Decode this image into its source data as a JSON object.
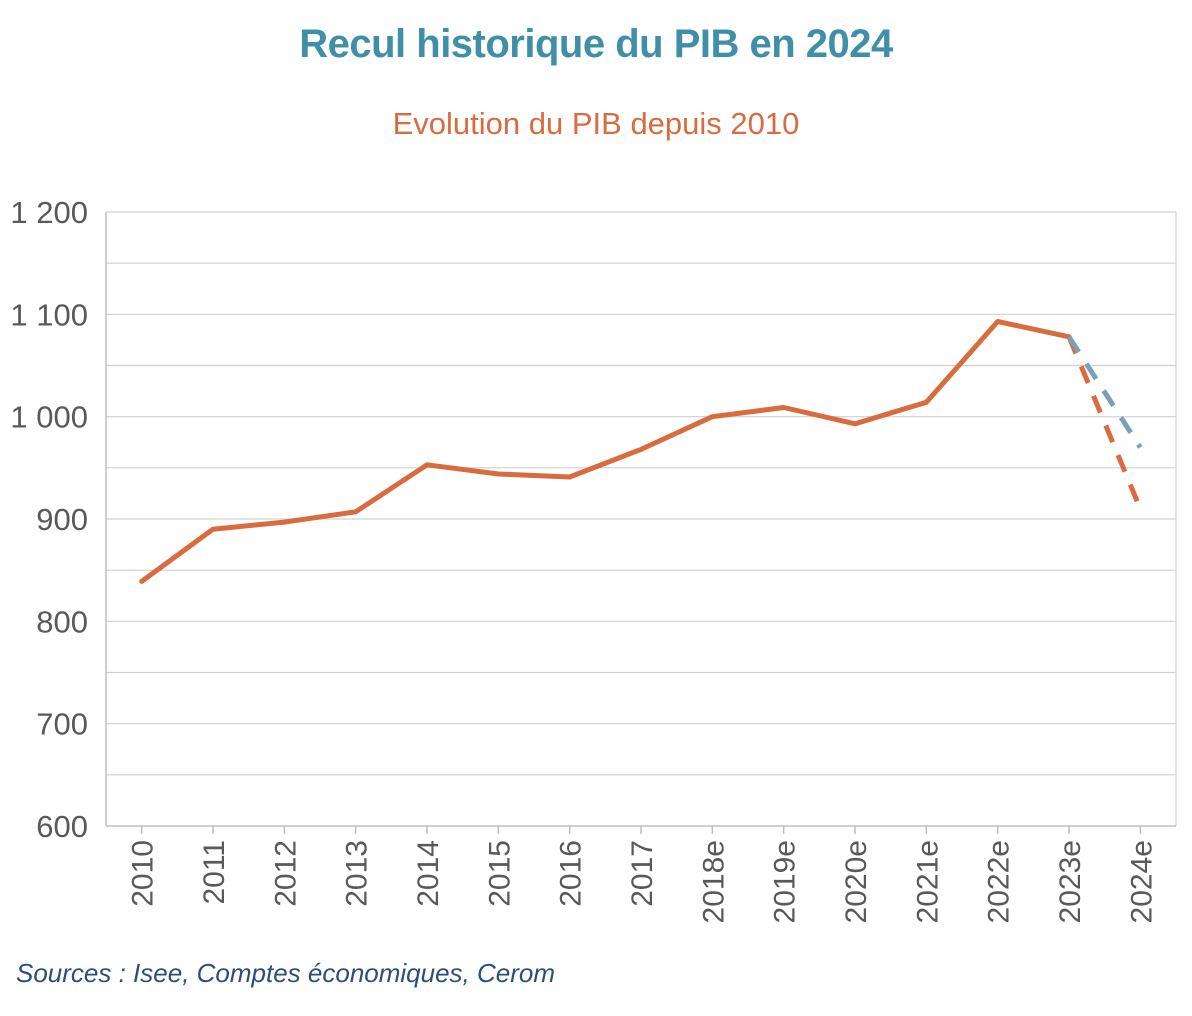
{
  "title": "Recul historique du PIB en 2024",
  "subtitle": "Evolution du PIB depuis 2010",
  "source": "Sources : Isee, Comptes économiques, Cerom",
  "colors": {
    "title": "#3f8fa8",
    "subtitle": "#d96c3f",
    "series_main": "#d96c3f",
    "series_alt": "#7a9fb8",
    "grid": "#d0d0d0",
    "source": "#2b4f7a"
  },
  "chart_data": {
    "type": "line",
    "title": "Recul historique du PIB en 2024",
    "subtitle": "Evolution du PIB depuis 2010",
    "xlabel": "",
    "ylabel": "",
    "ylim": [
      600,
      1200
    ],
    "yticks": [
      600,
      700,
      800,
      900,
      1000,
      1100,
      1200
    ],
    "ytick_labels": [
      "600",
      "700",
      "800",
      "900",
      "1 000",
      "1 100",
      "1 200"
    ],
    "grid": true,
    "legend": "none",
    "categories": [
      "2010",
      "2011",
      "2012",
      "2013",
      "2014",
      "2015",
      "2016",
      "2017",
      "2018e",
      "2019e",
      "2020e",
      "2021e",
      "2022e",
      "2023e",
      "2024e"
    ],
    "series": [
      {
        "style": "solid",
        "color": "#d96c3f",
        "values": [
          839,
          890,
          897,
          907,
          953,
          944,
          941,
          968,
          1000,
          1009,
          993,
          1014,
          1093,
          1078,
          null
        ]
      },
      {
        "style": "dashed",
        "color": "#d96c3f",
        "values": [
          null,
          null,
          null,
          null,
          null,
          null,
          null,
          null,
          null,
          null,
          null,
          null,
          null,
          1078,
          910
        ]
      },
      {
        "style": "dashed",
        "color": "#7a9fb8",
        "values": [
          null,
          null,
          null,
          null,
          null,
          null,
          null,
          null,
          null,
          null,
          null,
          null,
          null,
          1078,
          970
        ]
      }
    ]
  }
}
